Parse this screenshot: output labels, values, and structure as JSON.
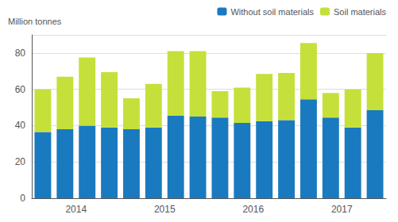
{
  "chart_data": {
    "type": "bar",
    "stacked": true,
    "ylabel": "Million tonnes",
    "categories": [
      "2014",
      null,
      null,
      null,
      "2015",
      null,
      null,
      null,
      "2016",
      null,
      null,
      null,
      "2017",
      null,
      null,
      null
    ],
    "series": [
      {
        "name": "Without soil materials",
        "color": "#1a7abf",
        "values": [
          36.5,
          38.0,
          40.0,
          39.0,
          38.0,
          39.0,
          45.5,
          45.0,
          44.5,
          41.5,
          42.5,
          43.0,
          54.5,
          44.5,
          39.0,
          48.5
        ]
      },
      {
        "name": "Soil materials",
        "color": "#c5e03a",
        "values": [
          23.5,
          29.0,
          37.5,
          30.5,
          17.0,
          24.0,
          35.5,
          36.0,
          14.5,
          19.5,
          26.0,
          26.0,
          31.0,
          13.5,
          21.0,
          31.5
        ]
      }
    ],
    "ylim": [
      0,
      90
    ],
    "yticks": [
      0,
      20,
      40,
      60,
      80
    ],
    "grid": true,
    "legend": "upper right"
  }
}
